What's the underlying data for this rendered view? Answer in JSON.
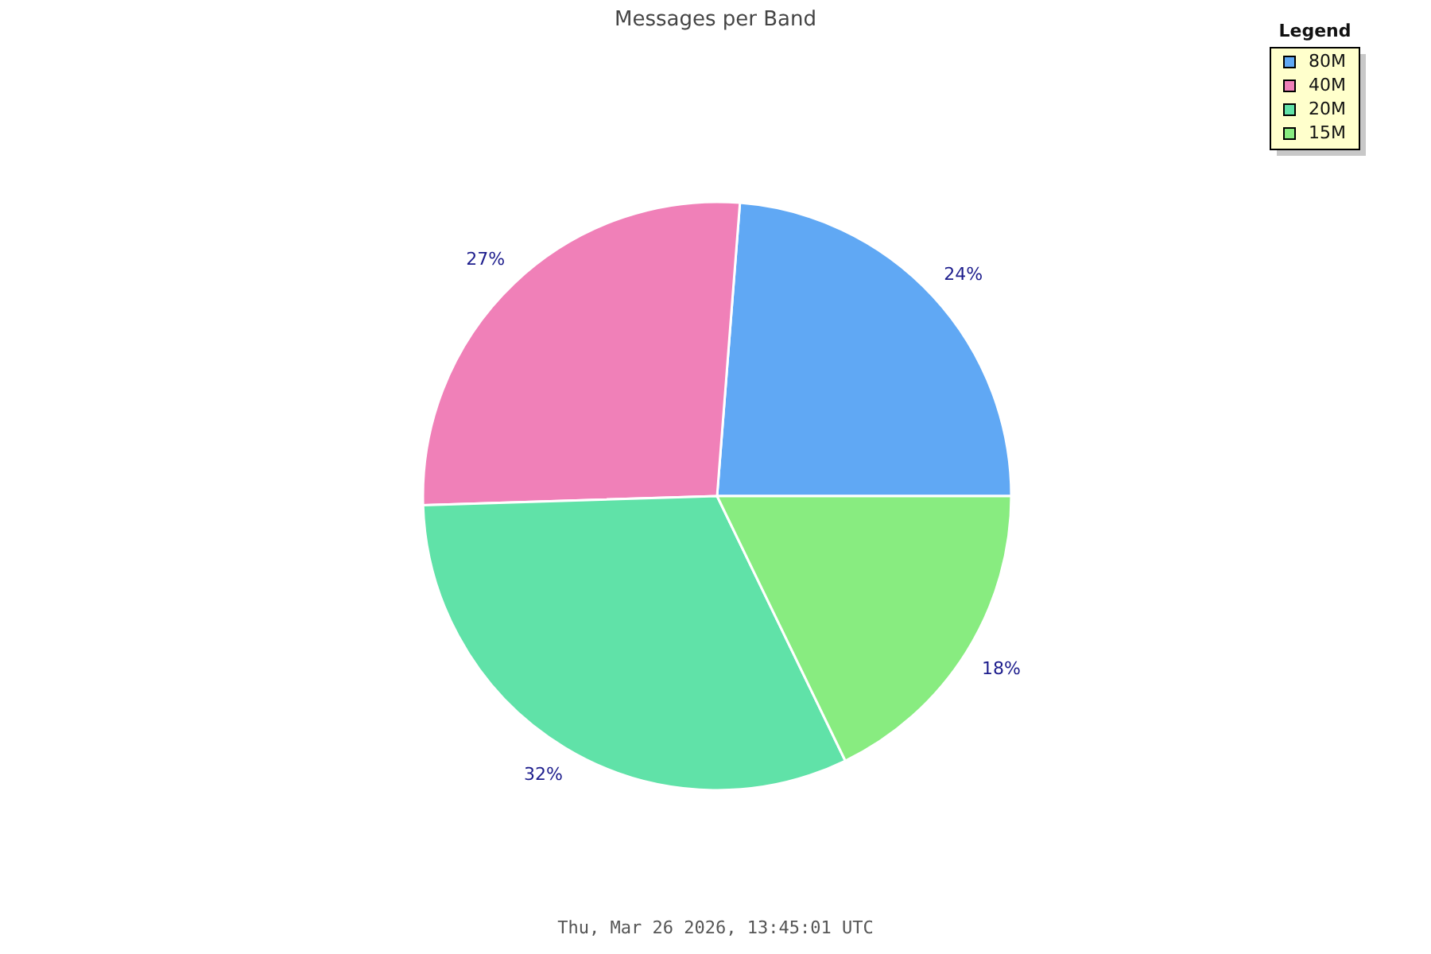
{
  "chart_data": {
    "type": "pie",
    "title": "Messages per Band",
    "categories": [
      "80M",
      "40M",
      "20M",
      "15M"
    ],
    "values": [
      24,
      27,
      32,
      18
    ],
    "colors": [
      "#60a8f4",
      "#f080b8",
      "#60e2a8",
      "#88ec80"
    ],
    "value_labels": [
      "24%",
      "27%",
      "32%",
      "18%"
    ],
    "legend_title": "Legend",
    "legend": "top right",
    "annotations": [
      "Thu, Mar 26 2026, 13:45:01 UTC"
    ]
  }
}
